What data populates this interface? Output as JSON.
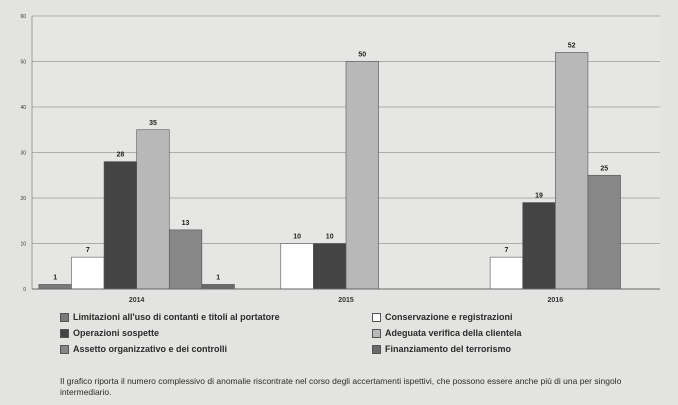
{
  "chart_data": {
    "type": "bar",
    "categories": [
      "2014",
      "2015",
      "2016"
    ],
    "ylim": [
      0,
      60
    ],
    "yticks": [
      0,
      10,
      20,
      30,
      40,
      50,
      60
    ],
    "grid": true,
    "legend_position": "bottom",
    "series": [
      {
        "name": "Limitazioni all'uso di contanti e titoli al portatore",
        "color": "#7a7a7a",
        "values": [
          1,
          null,
          null
        ]
      },
      {
        "name": "Conservazione e registrazioni",
        "color": "#ffffff",
        "values": [
          7,
          10,
          7
        ]
      },
      {
        "name": "Operazioni sospette",
        "color": "#444444",
        "values": [
          28,
          10,
          19
        ]
      },
      {
        "name": "Adeguata verifica della clientela",
        "color": "#b8b8b8",
        "values": [
          35,
          50,
          52
        ]
      },
      {
        "name": "Assetto organizzativo e dei controlli",
        "color": "#878787",
        "values": [
          13,
          null,
          25
        ]
      },
      {
        "name": "Finanziamento del terrorismo",
        "color": "#6a6a6a",
        "values": [
          1,
          null,
          null
        ]
      }
    ]
  },
  "note": "Il grafico riporta il numero complessivo di anomalie riscontrate nel corso degli accertamenti ispettivi, che possono essere anche più di una per singolo intermediario."
}
